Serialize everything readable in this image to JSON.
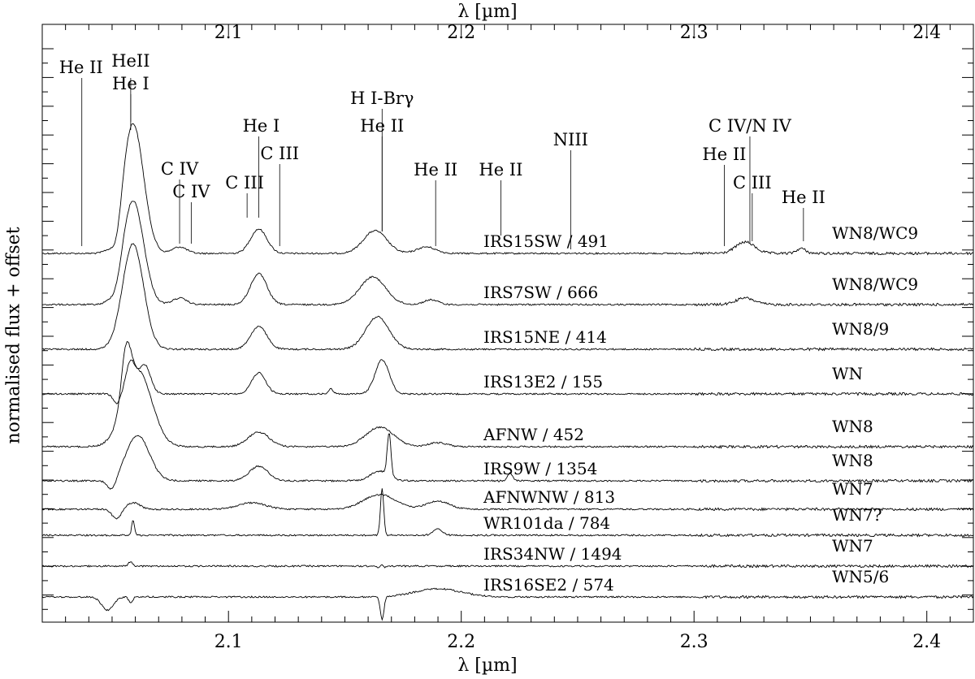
{
  "chart_data": {
    "type": "line",
    "xlabel": "λ [µm]",
    "ylabel": "normalised flux + offset",
    "xlim": [
      2.02,
      2.42
    ],
    "xticks": [
      2.1,
      2.2,
      2.3,
      2.4
    ],
    "xticklabels": [
      "2.1",
      "2.2",
      "2.3",
      "2.4"
    ],
    "grid": false,
    "lines": [
      {
        "label": "He II",
        "x": 2.037
      },
      {
        "label": "HeII",
        "x": 2.058
      },
      {
        "label": "He I",
        "x": 2.058
      },
      {
        "label": "C IV",
        "x": 2.079
      },
      {
        "label": "C IV",
        "x": 2.084
      },
      {
        "label": "C III",
        "x": 2.108
      },
      {
        "label": "He I",
        "x": 2.113
      },
      {
        "label": "C III",
        "x": 2.122
      },
      {
        "label": "H I-Brγ",
        "x": 2.166
      },
      {
        "label": "He II",
        "x": 2.166
      },
      {
        "label": "He II",
        "x": 2.189
      },
      {
        "label": "He II",
        "x": 2.217
      },
      {
        "label": "NIII",
        "x": 2.247
      },
      {
        "label": "C IV/N IV",
        "x": 2.324
      },
      {
        "label": "He II",
        "x": 2.313
      },
      {
        "label": "C III",
        "x": 2.325
      },
      {
        "label": "He II",
        "x": 2.347
      }
    ],
    "series": [
      {
        "name": "IRS15SW",
        "count": "491",
        "type": "WN8/WC9",
        "offset": 10
      },
      {
        "name": "IRS7SW",
        "count": "666",
        "type": "WN8/WC9",
        "offset": 9
      },
      {
        "name": "IRS15NE",
        "count": "414",
        "type": "WN8/9",
        "offset": 8
      },
      {
        "name": "IRS13E2",
        "count": "155",
        "type": "WN",
        "offset": 7
      },
      {
        "name": "AFNW",
        "count": "452",
        "type": "WN8",
        "offset": 6
      },
      {
        "name": "IRS9W",
        "count": "1354",
        "type": "WN8",
        "offset": 5
      },
      {
        "name": "AFNWNW",
        "count": "813",
        "type": "WN7",
        "offset": 4
      },
      {
        "name": "WR101da",
        "count": "784",
        "type": "WN7?",
        "offset": 3
      },
      {
        "name": "IRS34NW",
        "count": "1494",
        "type": "WN7",
        "offset": 2
      },
      {
        "name": "IRS16SE2",
        "count": "574",
        "type": "WN5/6",
        "offset": 1
      }
    ]
  }
}
